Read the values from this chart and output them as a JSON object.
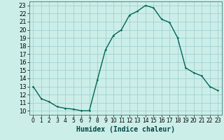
{
  "x": [
    0,
    1,
    2,
    3,
    4,
    5,
    6,
    7,
    8,
    9,
    10,
    11,
    12,
    13,
    14,
    15,
    16,
    17,
    18,
    19,
    20,
    21,
    22,
    23
  ],
  "y": [
    13.0,
    11.5,
    11.1,
    10.5,
    10.3,
    10.2,
    10.0,
    10.0,
    13.8,
    17.5,
    19.3,
    20.0,
    21.8,
    22.3,
    23.0,
    22.7,
    21.3,
    20.9,
    19.0,
    15.3,
    14.7,
    14.3,
    13.0,
    12.5
  ],
  "xlabel": "Humidex (Indice chaleur)",
  "xlim": [
    -0.5,
    23.5
  ],
  "ylim": [
    9.5,
    23.5
  ],
  "yticks": [
    10,
    11,
    12,
    13,
    14,
    15,
    16,
    17,
    18,
    19,
    20,
    21,
    22,
    23
  ],
  "xticks": [
    0,
    1,
    2,
    3,
    4,
    5,
    6,
    7,
    8,
    9,
    10,
    11,
    12,
    13,
    14,
    15,
    16,
    17,
    18,
    19,
    20,
    21,
    22,
    23
  ],
  "line_color": "#006655",
  "bg_color": "#cceee8",
  "grid_color": "#99cccc",
  "xlabel_fontsize": 7,
  "ytick_fontsize": 6,
  "xtick_fontsize": 5.5,
  "line_width": 1.0,
  "marker_size": 2.5
}
